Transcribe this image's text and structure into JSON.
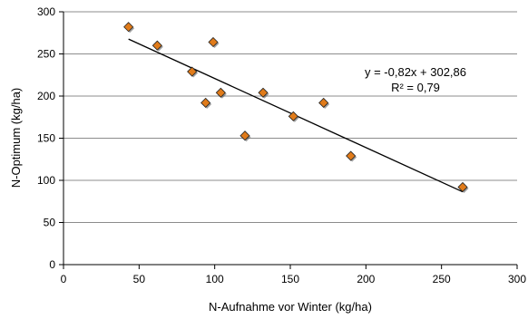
{
  "chart_data": {
    "type": "scatter",
    "title": "",
    "xlabel": "N-Aufnahme vor Winter (kg/ha)",
    "ylabel": "N-Optimum (kg/ha)",
    "xlim": [
      0,
      300
    ],
    "ylim": [
      0,
      300
    ],
    "xticks": [
      0,
      50,
      100,
      150,
      200,
      250,
      300
    ],
    "yticks": [
      0,
      50,
      100,
      150,
      200,
      250,
      300
    ],
    "grid": "horizontal",
    "legend": "none",
    "marker_color": "#e07b1a",
    "marker_edge_color": "#222222",
    "points": [
      {
        "x": 43,
        "y": 282
      },
      {
        "x": 62,
        "y": 260
      },
      {
        "x": 85,
        "y": 229
      },
      {
        "x": 94,
        "y": 192
      },
      {
        "x": 99,
        "y": 264
      },
      {
        "x": 104,
        "y": 204
      },
      {
        "x": 120,
        "y": 153
      },
      {
        "x": 132,
        "y": 204
      },
      {
        "x": 152,
        "y": 176
      },
      {
        "x": 172,
        "y": 192
      },
      {
        "x": 190,
        "y": 129
      },
      {
        "x": 264,
        "y": 92
      }
    ],
    "trendline": {
      "slope": -0.82,
      "intercept": 302.86,
      "x_range": [
        43,
        264
      ],
      "equation_label": "y = -0,82x + 302,86",
      "r2_label": "R² = 0,79"
    }
  }
}
